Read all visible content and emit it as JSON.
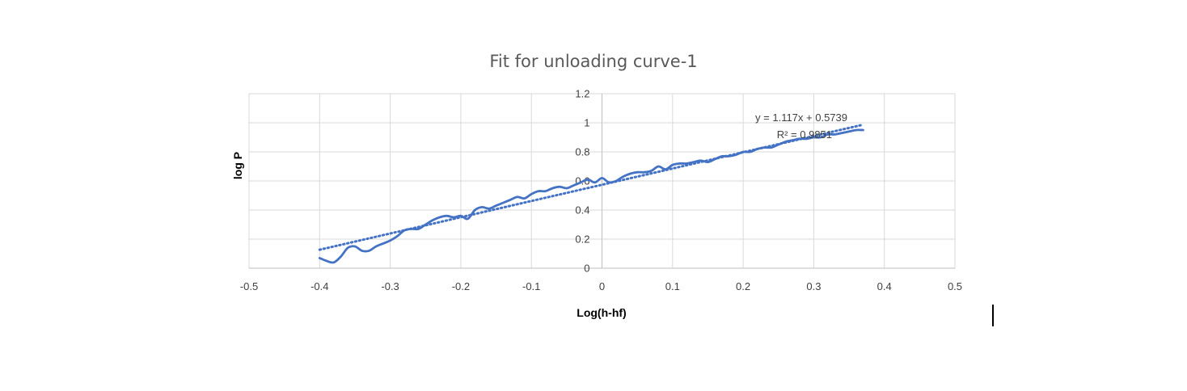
{
  "chart_data": {
    "type": "line",
    "title": "Fit for unloading curve-1",
    "xlabel": "Log(h-hf)",
    "ylabel": "log P",
    "xlim": [
      -0.5,
      0.5
    ],
    "ylim": [
      0,
      1.2
    ],
    "x_ticks": [
      "-0.5",
      "-0.4",
      "-0.3",
      "-0.2",
      "-0.1",
      "0",
      "0.1",
      "0.2",
      "0.3",
      "0.4",
      "0.5"
    ],
    "y_ticks": [
      "0",
      "0.2",
      "0.4",
      "0.6",
      "0.8",
      "1",
      "1.2"
    ],
    "grid": true,
    "legend": "none",
    "colors": {
      "series": "#4472c4",
      "trendline": "#4472c4",
      "grid": "#d9d9d9"
    },
    "series": [
      {
        "x": [
          -0.4,
          -0.39,
          -0.38,
          -0.37,
          -0.36,
          -0.35,
          -0.34,
          -0.33,
          -0.32,
          -0.31,
          -0.3,
          -0.29,
          -0.28,
          -0.27,
          -0.26,
          -0.25,
          -0.24,
          -0.23,
          -0.22,
          -0.21,
          -0.2,
          -0.19,
          -0.18,
          -0.17,
          -0.16,
          -0.15,
          -0.14,
          -0.13,
          -0.12,
          -0.11,
          -0.1,
          -0.09,
          -0.08,
          -0.07,
          -0.06,
          -0.05,
          -0.04,
          -0.03,
          -0.02,
          -0.01,
          0.0,
          0.01,
          0.02,
          0.03,
          0.04,
          0.05,
          0.06,
          0.07,
          0.08,
          0.09,
          0.1,
          0.11,
          0.12,
          0.13,
          0.14,
          0.15,
          0.16,
          0.17,
          0.18,
          0.19,
          0.2,
          0.21,
          0.22,
          0.23,
          0.24,
          0.25,
          0.26,
          0.27,
          0.28,
          0.29,
          0.3,
          0.31,
          0.32,
          0.33,
          0.34,
          0.35,
          0.36,
          0.37
        ],
        "y": [
          0.07,
          0.05,
          0.04,
          0.08,
          0.14,
          0.15,
          0.12,
          0.12,
          0.15,
          0.17,
          0.19,
          0.22,
          0.26,
          0.27,
          0.27,
          0.3,
          0.33,
          0.35,
          0.36,
          0.35,
          0.36,
          0.34,
          0.4,
          0.42,
          0.41,
          0.43,
          0.45,
          0.47,
          0.49,
          0.48,
          0.51,
          0.53,
          0.53,
          0.55,
          0.56,
          0.55,
          0.57,
          0.59,
          0.61,
          0.59,
          0.62,
          0.59,
          0.6,
          0.63,
          0.65,
          0.66,
          0.66,
          0.67,
          0.7,
          0.68,
          0.71,
          0.72,
          0.72,
          0.73,
          0.74,
          0.73,
          0.75,
          0.77,
          0.77,
          0.78,
          0.8,
          0.8,
          0.82,
          0.83,
          0.83,
          0.85,
          0.87,
          0.88,
          0.89,
          0.89,
          0.9,
          0.9,
          0.92,
          0.92,
          0.93,
          0.94,
          0.95,
          0.95
        ]
      }
    ],
    "trendline": {
      "type": "linear",
      "slope": 1.117,
      "intercept": 0.5739,
      "x_range": [
        -0.4,
        0.37
      ],
      "equation": "y = 1.117x + 0.5739",
      "r_squared": "R² = 0.9851"
    }
  }
}
